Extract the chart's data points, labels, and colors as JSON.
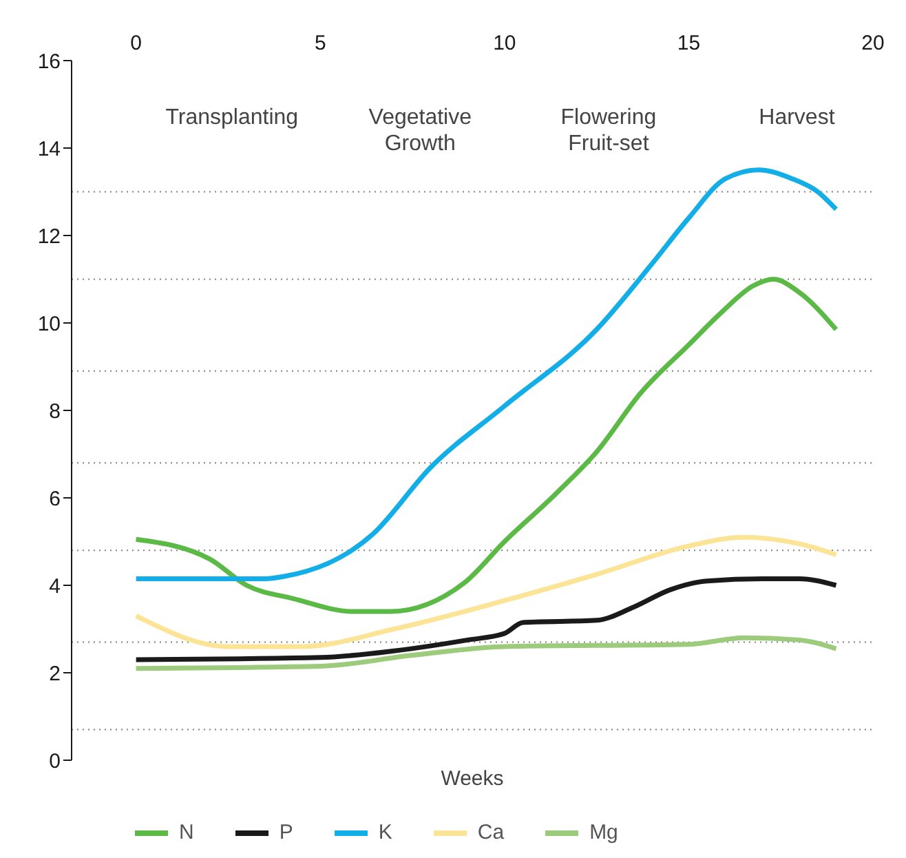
{
  "chart_data": {
    "type": "line",
    "xlabel": "Weeks",
    "annotations": [
      "Transplanting",
      "Vegetative Growth",
      "Flowering Fruit-set",
      "Harvest"
    ],
    "xlim": [
      -1.75,
      20
    ],
    "xticks": [
      0,
      5,
      10,
      15,
      20
    ],
    "ylim": [
      0,
      16
    ],
    "yticks": [
      0,
      2,
      4,
      6,
      8,
      10,
      12,
      14,
      16
    ],
    "legend": "bottom",
    "marker": "none",
    "line_style": "solid",
    "ref_lines": [
      {
        "axis": "y",
        "value": 0.7,
        "color": "#808080",
        "line_style": "dotted"
      },
      {
        "axis": "y",
        "value": 2.7,
        "color": "#808080",
        "line_style": "dotted"
      },
      {
        "axis": "y",
        "value": 4.8,
        "color": "#808080",
        "line_style": "dotted"
      },
      {
        "axis": "y",
        "value": 6.8,
        "color": "#808080",
        "line_style": "dotted"
      },
      {
        "axis": "y",
        "value": 8.9,
        "color": "#808080",
        "line_style": "dotted"
      },
      {
        "axis": "y",
        "value": 11,
        "color": "#808080",
        "line_style": "dotted"
      },
      {
        "axis": "y",
        "value": 13,
        "color": "#808080",
        "line_style": "dotted"
      }
    ],
    "series": [
      {
        "name": "N",
        "color": "#5bb946",
        "x": [
          0,
          2,
          3,
          4.25,
          5.9,
          6.9,
          8.9,
          10,
          11.4,
          12.5,
          13.7,
          15,
          15.9,
          16.75,
          17.3,
          18,
          19
        ],
        "values": [
          5.05,
          4.6,
          4.0,
          3.7,
          3.4,
          3.4,
          4.05,
          5.0,
          6.1,
          7.05,
          8.4,
          9.5,
          10.25,
          10.85,
          11.0,
          10.7,
          9.85
        ]
      },
      {
        "name": "P",
        "color": "#1a1a1a",
        "x": [
          0,
          5,
          7,
          9,
          10,
          10.5,
          12.5,
          13.5,
          14.5,
          15.5,
          17,
          18,
          19
        ],
        "values": [
          2.3,
          2.35,
          2.5,
          2.75,
          2.9,
          3.15,
          3.2,
          3.5,
          3.9,
          4.1,
          4.15,
          4.15,
          4.0
        ]
      },
      {
        "name": "K",
        "color": "#13aee8",
        "x": [
          0,
          3.5,
          4,
          6.4,
          8,
          10,
          12.5,
          14,
          15,
          16,
          16.9,
          17.8,
          18.5,
          19
        ],
        "values": [
          4.15,
          4.15,
          4.2,
          5.15,
          6.7,
          8.1,
          9.85,
          11.35,
          12.4,
          13.3,
          13.5,
          13.3,
          13.0,
          12.6
        ]
      },
      {
        "name": "Ca",
        "color": "#fce496",
        "x": [
          0,
          2.5,
          4.5,
          7,
          10,
          12.5,
          15,
          16.5,
          18,
          19
        ],
        "values": [
          3.3,
          2.6,
          2.6,
          3.0,
          3.65,
          4.25,
          4.9,
          5.1,
          4.95,
          4.7
        ]
      },
      {
        "name": "Mg",
        "color": "#9ccb7b",
        "x": [
          0,
          5,
          7.5,
          10,
          15,
          16.5,
          18,
          19
        ],
        "values": [
          2.1,
          2.15,
          2.4,
          2.6,
          2.65,
          2.8,
          2.75,
          2.55
        ]
      }
    ]
  }
}
